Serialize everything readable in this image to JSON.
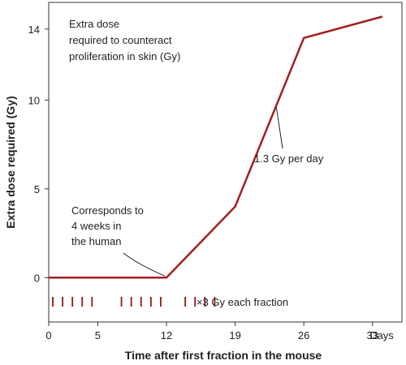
{
  "chart_data": {
    "type": "line",
    "title": "",
    "xlabel": "Time after first fraction in the mouse",
    "ylabel": "Extra dose required (Gy)",
    "x_unit_label": "Days",
    "xlim": [
      0,
      36
    ],
    "ylim": [
      -2.5,
      15.5
    ],
    "x_ticks": [
      0,
      5,
      12,
      19,
      26,
      33
    ],
    "y_ticks": [
      0,
      5,
      10,
      14
    ],
    "grid": false,
    "series": [
      {
        "x": [
          0,
          12,
          19,
          26,
          34
        ],
        "y": [
          0,
          0,
          4,
          13.5,
          14.7
        ],
        "color": "#a21f21"
      }
    ],
    "fractions": {
      "days": [
        0,
        1,
        2,
        3,
        4,
        7,
        8,
        9,
        10,
        11,
        13.5,
        14.5,
        15.5,
        16.5
      ],
      "label": "×3 Gy each fraction",
      "color": "#8b1a1a"
    },
    "annotations": {
      "top_left": {
        "lines": [
          "Extra dose",
          "required to counteract",
          "proliferation in skin (Gy)"
        ]
      },
      "slope": {
        "text": "1.3 Gy per day",
        "target": [
          23.2,
          9.6
        ]
      },
      "equivalence": {
        "lines": [
          "Corresponds to",
          "4 weeks in",
          "the human"
        ],
        "target": [
          12,
          0
        ]
      }
    }
  }
}
